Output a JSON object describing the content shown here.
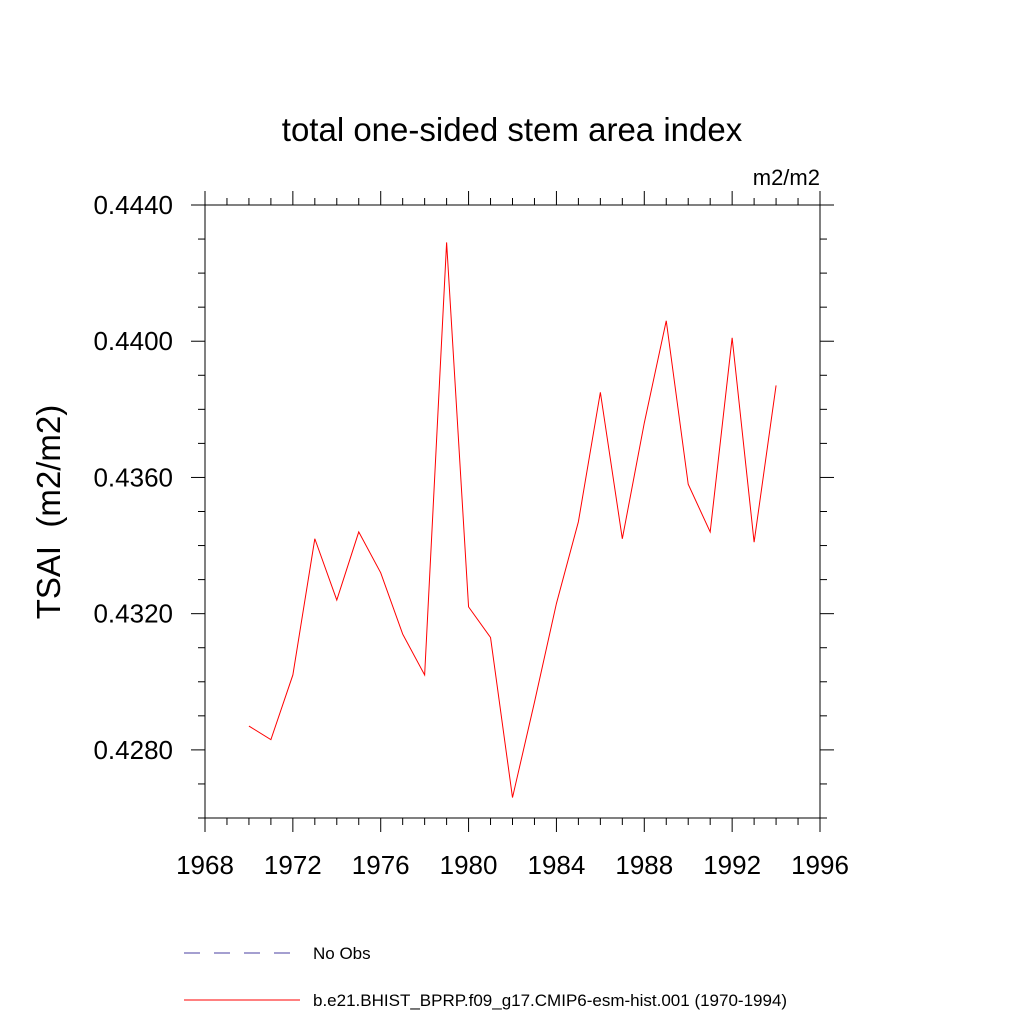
{
  "chart_data": {
    "type": "line",
    "title": "total one-sided stem area index",
    "units": "m2/m2",
    "ylabel": "TSAI  (m2/m2)",
    "xlabel": "",
    "xlim": [
      1968,
      1996
    ],
    "ylim": [
      0.426,
      0.444
    ],
    "x_ticks": [
      1968,
      1972,
      1976,
      1980,
      1984,
      1988,
      1992,
      1996
    ],
    "x_tick_labels": [
      "1968",
      "1972",
      "1976",
      "1980",
      "1984",
      "1988",
      "1992",
      "1996"
    ],
    "y_ticks": [
      0.428,
      0.432,
      0.436,
      0.44,
      0.444
    ],
    "y_tick_labels": [
      "0.4280",
      "0.4320",
      "0.4360",
      "0.4400",
      "0.4440"
    ],
    "grid": false,
    "legend_position": "bottom",
    "series": [
      {
        "name": "b.e21.BHIST_BPRP.f09_g17.CMIP6-esm-hist.001 (1970-1994)",
        "color": "#ff0000",
        "dash": "solid",
        "x": [
          1970,
          1971,
          1972,
          1973,
          1974,
          1975,
          1976,
          1977,
          1978,
          1979,
          1980,
          1981,
          1982,
          1983,
          1984,
          1985,
          1986,
          1987,
          1988,
          1989,
          1990,
          1991,
          1992,
          1993,
          1994
        ],
        "y": [
          0.4287,
          0.4283,
          0.4302,
          0.4342,
          0.4324,
          0.4344,
          0.4332,
          0.4314,
          0.4302,
          0.4429,
          0.4322,
          0.4313,
          0.4266,
          0.4294,
          0.4323,
          0.4347,
          0.4385,
          0.4342,
          0.4376,
          0.4406,
          0.4358,
          0.4344,
          0.4401,
          0.4341,
          0.4387
        ]
      }
    ],
    "legend": [
      {
        "label": "No Obs",
        "color": "#4a3fa0",
        "dash": "dashed"
      },
      {
        "label": "b.e21.BHIST_BPRP.f09_g17.CMIP6-esm-hist.001 (1970-1994)",
        "color": "#ff0000",
        "dash": "solid"
      }
    ]
  }
}
